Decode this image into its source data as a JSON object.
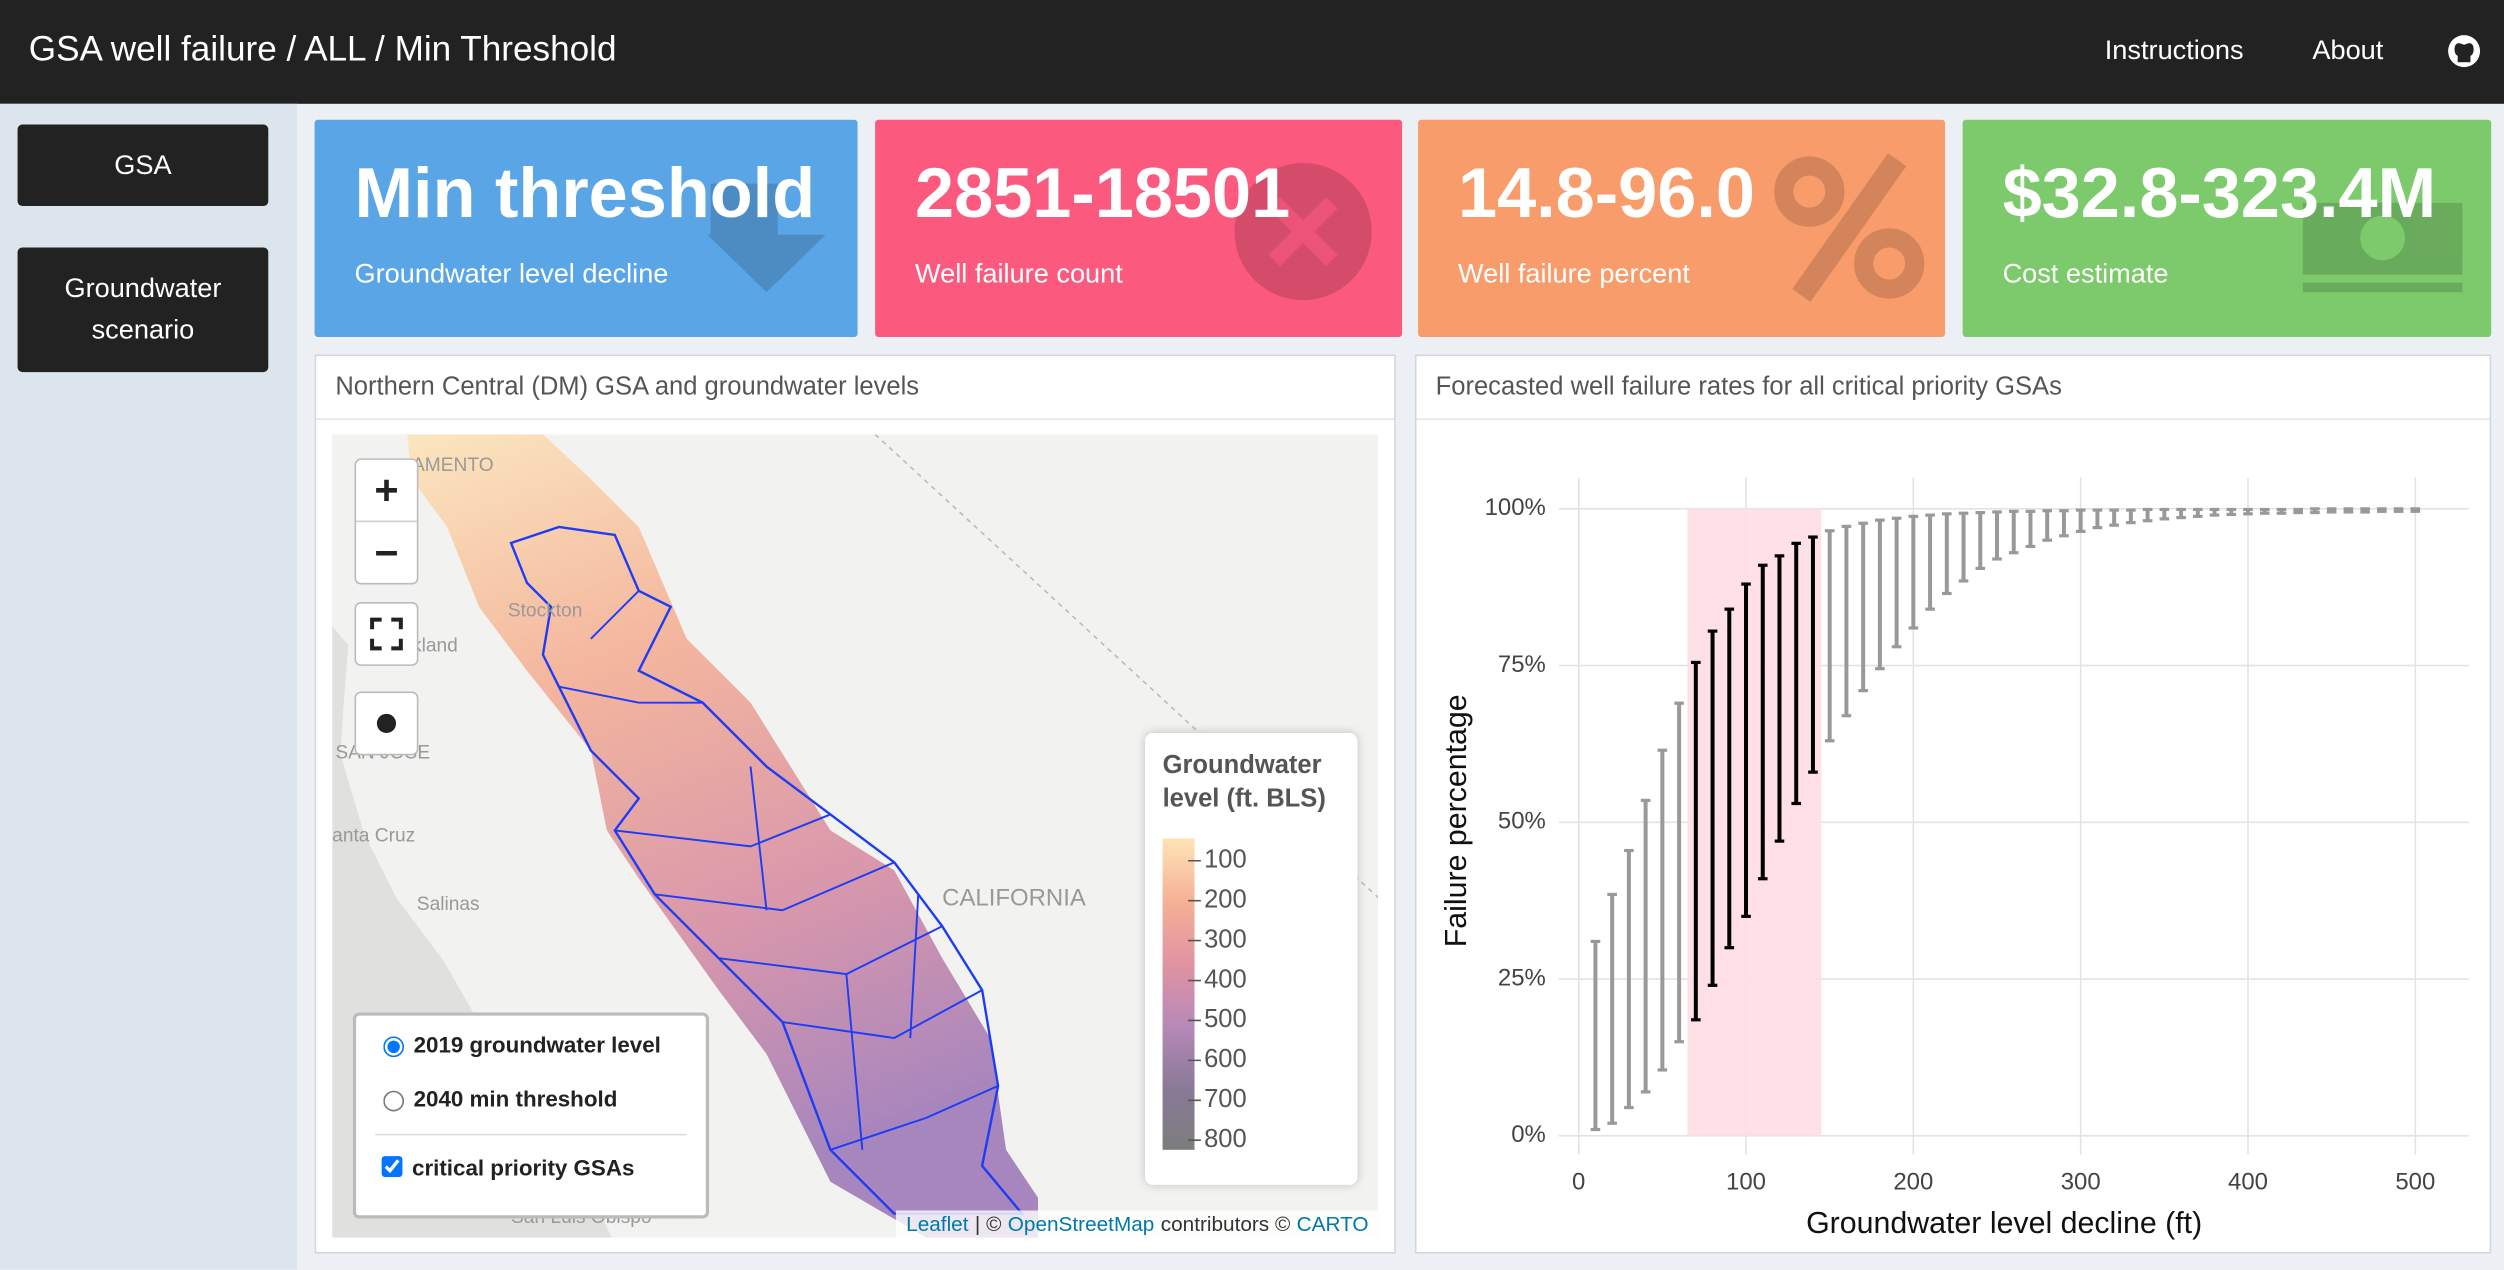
{
  "header": {
    "title": "GSA well failure / ALL / Min Threshold",
    "links": [
      "Instructions",
      "About"
    ]
  },
  "sidebar": {
    "buttons": [
      "GSA",
      "Groundwater scenario"
    ]
  },
  "boxes": [
    {
      "value": "Min threshold",
      "label": "Groundwater level decline",
      "color": "#5aa5e6"
    },
    {
      "value": "2851-18501",
      "label": "Well failure count",
      "color": "#fb5a7e"
    },
    {
      "value": "14.8-96.0",
      "label": "Well failure percent",
      "color": "#f99c6b"
    },
    {
      "value": "$32.8-323.4M",
      "label": "Cost estimate",
      "color": "#7dca6d"
    }
  ],
  "map": {
    "title": "Northern Central (DM) GSA and groundwater levels",
    "zoom": [
      "+",
      "−"
    ],
    "places": [
      "AMENTO",
      "Stockton",
      "kland",
      "SAN JOSE",
      "anta Cruz",
      "Salinas",
      "CALIFORNIA",
      "San Luis Obispo"
    ],
    "layers": {
      "radios": [
        "2019 groundwater level",
        "2040 min threshold"
      ],
      "checked": 0,
      "checkbox": "critical priority GSAs",
      "checkbox_checked": true
    },
    "legend": {
      "title": "Groundwater level (ft. BLS)",
      "ticks": [
        100,
        200,
        300,
        400,
        500,
        600,
        700,
        800
      ],
      "lim": [
        44,
        824
      ],
      "colors": [
        "#fde4b6",
        "#f6b196",
        "#e193a2",
        "#b889b8",
        "#8a7a98",
        "#7c7c7c"
      ]
    },
    "attribution": [
      "Leaflet",
      "| ©",
      "OpenStreetMap",
      "contributors ©",
      "CARTO"
    ]
  },
  "chart_data": {
    "type": "errorbar",
    "title": "Forecasted well failure rates for all critical priority GSAs",
    "x_label": "Groundwater level decline (ft)",
    "y_label": "Failure percentage",
    "x": [
      10,
      20,
      30,
      40,
      50,
      60,
      70,
      80,
      90,
      100,
      110,
      120,
      130,
      140,
      150,
      160,
      170,
      180,
      190,
      200,
      210,
      220,
      230,
      240,
      250,
      260,
      270,
      280,
      290,
      300,
      310,
      320,
      330,
      340,
      350,
      360,
      370,
      380,
      390,
      400,
      410,
      420,
      430,
      440,
      450,
      460,
      470,
      480,
      490,
      500
    ],
    "low": [
      1,
      2,
      4.5,
      7,
      10.5,
      15,
      18.5,
      24,
      30,
      35,
      41,
      47,
      53,
      58,
      63,
      67,
      71,
      74.5,
      78,
      81,
      84,
      86.5,
      88.5,
      90.5,
      92,
      93,
      94,
      95,
      95.7,
      96.4,
      97,
      97.4,
      97.8,
      98.1,
      98.4,
      98.6,
      98.8,
      99,
      99.1,
      99.2,
      99.3,
      99.3,
      99.4,
      99.4,
      99.5,
      99.5,
      99.5,
      99.6,
      99.6,
      99.6
    ],
    "high": [
      31,
      38.5,
      45.5,
      53.5,
      61.5,
      69,
      75.5,
      80.5,
      84,
      88,
      91,
      92.5,
      94.5,
      95.5,
      96.5,
      97.2,
      97.7,
      98.2,
      98.5,
      98.8,
      99,
      99.2,
      99.3,
      99.4,
      99.5,
      99.6,
      99.6,
      99.7,
      99.7,
      99.8,
      99.8,
      99.8,
      99.8,
      99.9,
      99.9,
      99.9,
      99.9,
      99.9,
      99.9,
      99.9,
      99.9,
      99.9,
      99.9,
      100,
      100,
      100,
      100,
      100,
      100,
      100
    ],
    "color": "#999999",
    "highlight_color": "#000000",
    "highlight": {
      "x": [
        65,
        145
      ],
      "y": [
        0,
        100
      ],
      "fill": "#ffdde4"
    },
    "xlim": [
      -12,
      532
    ],
    "ylim": [
      -3,
      105
    ],
    "xticks": [
      0,
      100,
      200,
      300,
      400,
      500
    ],
    "yticks": [
      {
        "value": 0,
        "label": "0%"
      },
      {
        "value": 25,
        "label": "25%"
      },
      {
        "value": 50,
        "label": "50%"
      },
      {
        "value": 75,
        "label": "75%"
      },
      {
        "value": 100,
        "label": "100%"
      }
    ],
    "grid": true
  }
}
